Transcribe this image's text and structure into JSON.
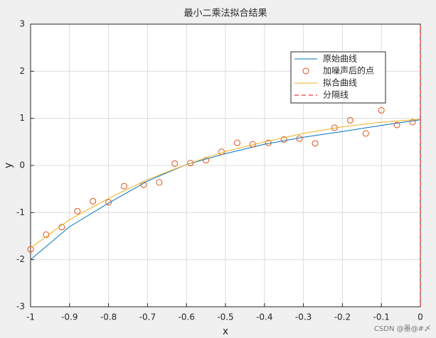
{
  "chart_data": {
    "type": "line",
    "title": "最小二乘法拟合结果",
    "xlabel": "x",
    "ylabel": "y",
    "watermark": "CSDN @墨@#〆",
    "xlim": [
      -1,
      0
    ],
    "ylim": [
      -3,
      3
    ],
    "xticks": [
      -1,
      -0.9,
      -0.8,
      -0.7,
      -0.6,
      -0.5,
      -0.4,
      -0.3,
      -0.2,
      -0.1,
      0
    ],
    "yticks": [
      -3,
      -2,
      -1,
      0,
      1,
      2,
      3
    ],
    "grid": true,
    "legend": "upper right",
    "series": [
      {
        "name": "原始曲线",
        "color": "#0072bd",
        "style": "line",
        "x": [
          -1,
          -0.9,
          -0.8,
          -0.7,
          -0.6,
          -0.5,
          -0.4,
          -0.3,
          -0.2,
          -0.1,
          0
        ],
        "values": [
          -2,
          -1.3,
          -0.8,
          -0.33,
          0.02,
          0.25,
          0.45,
          0.6,
          0.72,
          0.85,
          0.97
        ]
      },
      {
        "name": "加噪声后的点",
        "color": "#d95319",
        "style": "markers",
        "x": [
          -1,
          -0.96,
          -0.92,
          -0.88,
          -0.84,
          -0.8,
          -0.76,
          -0.71,
          -0.67,
          -0.63,
          -0.59,
          -0.55,
          -0.51,
          -0.47,
          -0.43,
          -0.39,
          -0.35,
          -0.31,
          -0.27,
          -0.22,
          -0.18,
          -0.14,
          -0.1,
          -0.06,
          -0.02
        ],
        "values": [
          -1.78,
          -1.47,
          -1.31,
          -0.97,
          -0.76,
          -0.78,
          -0.44,
          -0.41,
          -0.36,
          0.04,
          0.05,
          0.11,
          0.29,
          0.48,
          0.45,
          0.48,
          0.55,
          0.57,
          0.47,
          0.8,
          0.96,
          0.68,
          1.17,
          0.86,
          0.92
        ]
      },
      {
        "name": "拟合曲线",
        "color": "#edb120",
        "style": "line",
        "x": [
          -1,
          -0.9,
          -0.8,
          -0.7,
          -0.6,
          -0.5,
          -0.4,
          -0.3,
          -0.2,
          -0.1,
          0
        ],
        "values": [
          -1.75,
          -1.15,
          -0.7,
          -0.3,
          0.02,
          0.3,
          0.5,
          0.68,
          0.82,
          0.92,
          0.98
        ]
      },
      {
        "name": "分隔线",
        "color": "#ff0000",
        "style": "dashed",
        "x": [
          0,
          0
        ],
        "values": [
          -3,
          3
        ]
      }
    ]
  }
}
